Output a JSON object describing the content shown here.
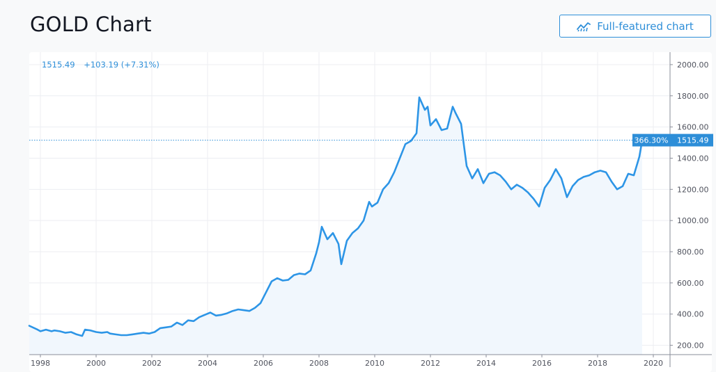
{
  "header": {
    "title": "GOLD Chart",
    "full_featured_label": "Full-featured chart"
  },
  "legend": {
    "last": "1515.49",
    "change": "+103.19 (+7.31%)"
  },
  "price_label": {
    "percent": "366.30%",
    "value": "1515.49"
  },
  "colors": {
    "line": "#2d95e6",
    "accent": "#2d8ed8",
    "fill": "#f1f7fd",
    "grid": "#eceef2"
  },
  "chart_data": {
    "type": "area",
    "title": "GOLD Chart",
    "xlim": [
      1997.6,
      2020.6
    ],
    "ylim": [
      140,
      2080
    ],
    "x_ticks": [
      "1998",
      "2000",
      "2002",
      "2004",
      "2006",
      "2008",
      "2010",
      "2012",
      "2014",
      "2016",
      "2018",
      "2020"
    ],
    "y_ticks": [
      "200.00",
      "400.00",
      "600.00",
      "800.00",
      "1000.00",
      "1200.00",
      "1400.00",
      "1600.00",
      "1800.00",
      "2000.00"
    ],
    "last_value": 1515.49,
    "grid": true,
    "x": [
      1997.6,
      1997.9,
      1998.0,
      1998.2,
      1998.4,
      1998.5,
      1998.7,
      1998.9,
      1999.1,
      1999.3,
      1999.5,
      1999.6,
      1999.8,
      1999.9,
      2000.0,
      2000.2,
      2000.4,
      2000.5,
      2000.7,
      2000.9,
      2001.1,
      2001.3,
      2001.5,
      2001.7,
      2001.9,
      2002.1,
      2002.3,
      2002.5,
      2002.7,
      2002.9,
      2003.1,
      2003.3,
      2003.5,
      2003.7,
      2003.9,
      2004.1,
      2004.3,
      2004.5,
      2004.7,
      2004.9,
      2005.1,
      2005.3,
      2005.5,
      2005.7,
      2005.9,
      2006.1,
      2006.3,
      2006.5,
      2006.7,
      2006.9,
      2007.1,
      2007.3,
      2007.5,
      2007.7,
      2007.9,
      2008.0,
      2008.1,
      2008.3,
      2008.5,
      2008.7,
      2008.8,
      2009.0,
      2009.2,
      2009.4,
      2009.6,
      2009.8,
      2009.9,
      2010.1,
      2010.3,
      2010.5,
      2010.7,
      2010.9,
      2011.1,
      2011.3,
      2011.5,
      2011.6,
      2011.8,
      2011.9,
      2012.0,
      2012.2,
      2012.4,
      2012.6,
      2012.8,
      2012.9,
      2013.1,
      2013.3,
      2013.5,
      2013.7,
      2013.9,
      2014.1,
      2014.3,
      2014.5,
      2014.7,
      2014.9,
      2015.1,
      2015.3,
      2015.5,
      2015.7,
      2015.9,
      2016.1,
      2016.3,
      2016.5,
      2016.7,
      2016.9,
      2017.1,
      2017.3,
      2017.5,
      2017.7,
      2017.9,
      2018.1,
      2018.3,
      2018.5,
      2018.7,
      2018.9,
      2019.1,
      2019.3,
      2019.5,
      2019.6
    ],
    "values": [
      325,
      300,
      290,
      300,
      290,
      295,
      290,
      280,
      285,
      270,
      260,
      300,
      295,
      290,
      285,
      280,
      285,
      275,
      270,
      265,
      265,
      270,
      275,
      280,
      275,
      285,
      310,
      315,
      320,
      345,
      330,
      360,
      355,
      380,
      395,
      410,
      390,
      395,
      405,
      420,
      430,
      425,
      420,
      440,
      470,
      540,
      610,
      630,
      615,
      620,
      650,
      660,
      655,
      680,
      790,
      860,
      960,
      880,
      920,
      850,
      720,
      870,
      920,
      950,
      1000,
      1120,
      1090,
      1115,
      1200,
      1240,
      1310,
      1400,
      1490,
      1510,
      1560,
      1790,
      1710,
      1730,
      1610,
      1650,
      1580,
      1590,
      1730,
      1690,
      1620,
      1350,
      1270,
      1330,
      1240,
      1300,
      1310,
      1290,
      1250,
      1200,
      1230,
      1210,
      1180,
      1140,
      1090,
      1210,
      1260,
      1330,
      1270,
      1150,
      1220,
      1260,
      1280,
      1290,
      1310,
      1320,
      1310,
      1250,
      1200,
      1220,
      1300,
      1290,
      1410,
      1515
    ]
  }
}
